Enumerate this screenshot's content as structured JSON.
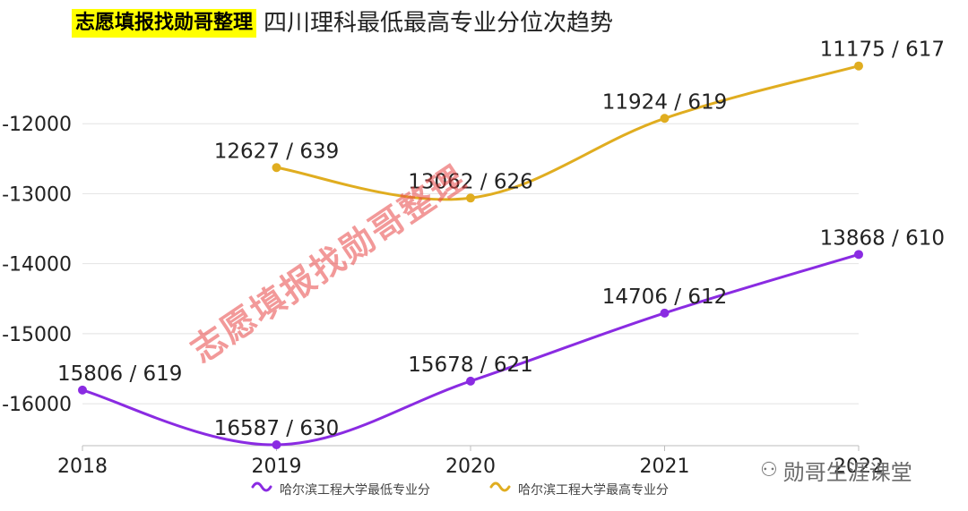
{
  "header": {
    "badge": "志愿填报找勋哥整理",
    "title": "四川理科最低最高专业分位次趋势"
  },
  "watermark": {
    "text": "志愿填报找勋哥整理"
  },
  "branding": {
    "icon": "wechat-icon",
    "text": "勋哥生涯课堂"
  },
  "chart_data": {
    "type": "line",
    "title": "四川理科最低最高专业分位次趋势",
    "xlabel": "",
    "ylabel": "",
    "categories": [
      "2018",
      "2019",
      "2020",
      "2021",
      "2022"
    ],
    "y_ticks": [
      -12000,
      -13000,
      -14000,
      -15000,
      -16000
    ],
    "ylim": [
      -16600,
      -11000
    ],
    "grid": true,
    "legend_position": "bottom",
    "series": [
      {
        "name": "哈尔滨工程大学最低专业分",
        "color": "#8a2be2",
        "values": [
          -15806,
          -16587,
          -15678,
          -14706,
          -13868
        ],
        "labels": [
          "15806 / 619",
          "16587 / 630",
          "15678 / 621",
          "14706 / 612",
          "13868 / 610"
        ]
      },
      {
        "name": "哈尔滨工程大学最高专业分",
        "color": "#e0ad20",
        "values": [
          null,
          -12627,
          -13062,
          -11924,
          -11175
        ],
        "labels": [
          null,
          "12627 / 639",
          "13062 / 626",
          "11924 / 619",
          "11175 / 617"
        ]
      }
    ]
  }
}
